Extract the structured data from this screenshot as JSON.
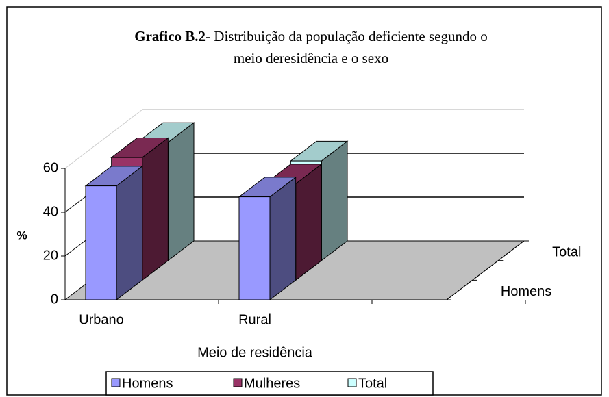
{
  "chart_data": {
    "type": "bar3d",
    "title_prefix": "Grafico B.2-",
    "title_lines": [
      "Distribuição da população deficiente segundo o",
      "meio deresidência e o sexo"
    ],
    "x_label": "Meio de residência",
    "y_label": "%",
    "categories": [
      "Urbano",
      "Rural"
    ],
    "series": [
      {
        "name": "Homens",
        "color": "#9999ff",
        "values": [
          52,
          47
        ]
      },
      {
        "name": "Mulheres",
        "color": "#993366",
        "values": [
          56,
          44
        ]
      },
      {
        "name": "Total",
        "color": "#ccffff",
        "values": [
          54,
          45.5
        ]
      }
    ],
    "ylim": [
      0,
      60
    ],
    "yticks": [
      0,
      20,
      40,
      60
    ],
    "grid": true,
    "legend": "bottom"
  }
}
